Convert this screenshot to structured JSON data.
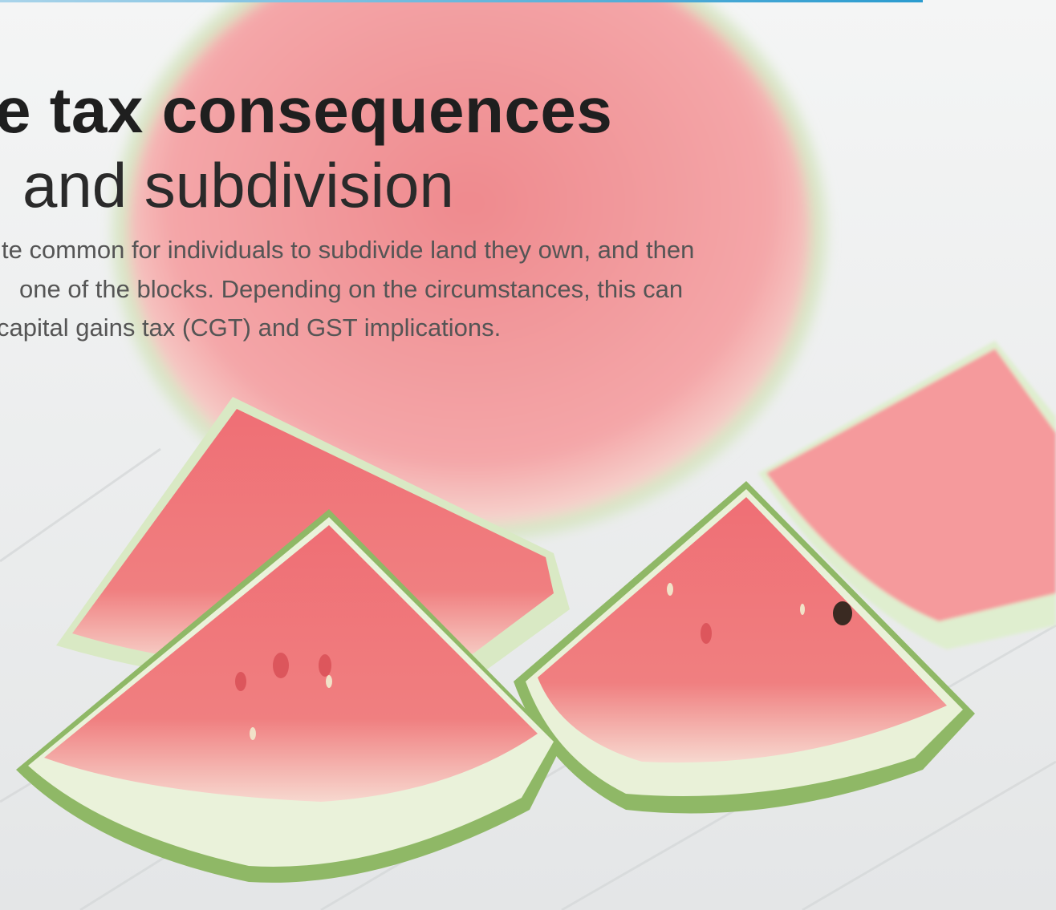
{
  "header": {
    "title_bold": "e tax consequences",
    "title_light": "and subdivision"
  },
  "body": {
    "lines": [
      "te common for individuals to subdivide land they own, and then",
      "one of the blocks. Depending on the circumstances, this can",
      "capital gains tax (CGT) and GST implications."
    ]
  }
}
